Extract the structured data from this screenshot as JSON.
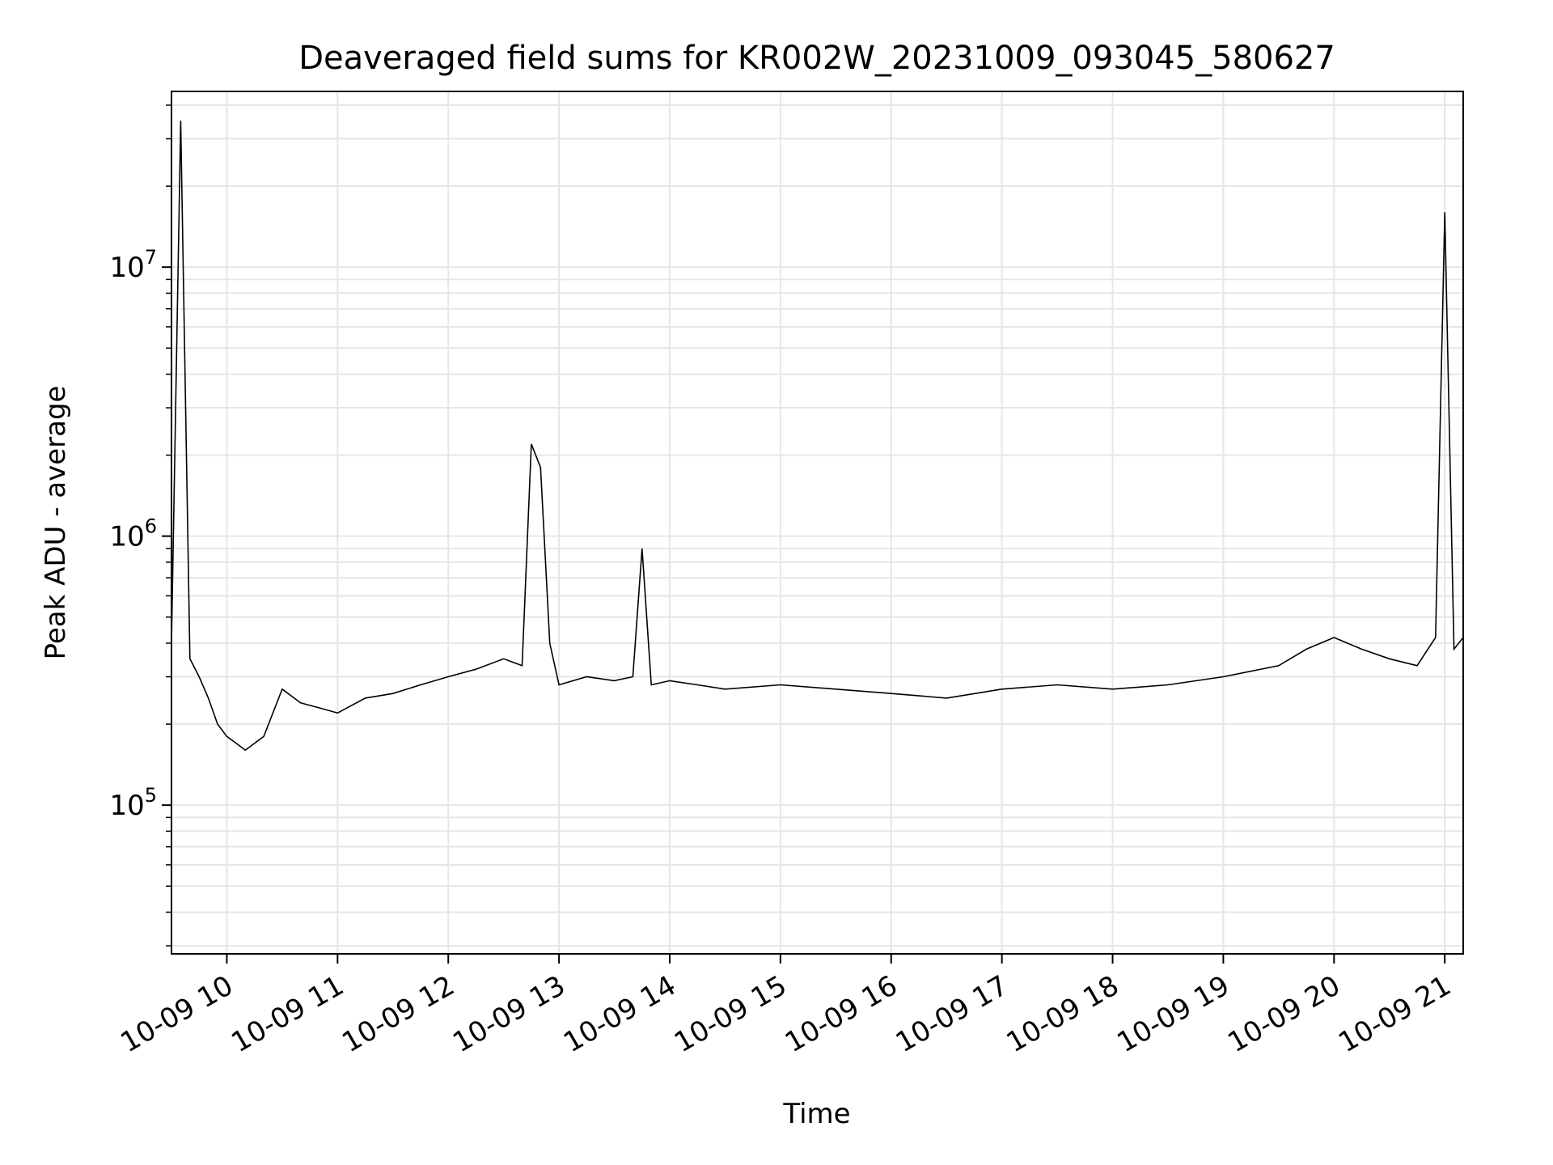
{
  "chart_data": {
    "type": "line",
    "title": "Deaveraged field sums for KR002W_20231009_093045_580627",
    "xlabel": "Time",
    "ylabel": "Peak ADU - average",
    "yscale": "log",
    "grid": true,
    "x_range": [
      "2023-10-09 09:30",
      "2023-10-09 21:10"
    ],
    "ylim": [
      28000,
      45000000
    ],
    "x_ticks": [
      "10-09 10",
      "10-09 11",
      "10-09 12",
      "10-09 13",
      "10-09 14",
      "10-09 15",
      "10-09 16",
      "10-09 17",
      "10-09 18",
      "10-09 19",
      "10-09 20",
      "10-09 21"
    ],
    "y_ticks": [
      {
        "value": 100000,
        "label_base": "10",
        "label_exp": "5"
      },
      {
        "value": 1000000,
        "label_base": "10",
        "label_exp": "6"
      },
      {
        "value": 10000000,
        "label_base": "10",
        "label_exp": "7"
      }
    ],
    "line_color": "#000000",
    "series": [
      {
        "x": [
          "2023-10-09 09:30",
          "2023-10-09 09:35",
          "2023-10-09 09:40",
          "2023-10-09 09:45",
          "2023-10-09 09:50",
          "2023-10-09 09:55",
          "2023-10-09 10:00",
          "2023-10-09 10:05",
          "2023-10-09 10:10",
          "2023-10-09 10:20",
          "2023-10-09 10:30",
          "2023-10-09 10:40",
          "2023-10-09 10:50",
          "2023-10-09 11:00",
          "2023-10-09 11:15",
          "2023-10-09 11:30",
          "2023-10-09 11:45",
          "2023-10-09 12:00",
          "2023-10-09 12:15",
          "2023-10-09 12:30",
          "2023-10-09 12:40",
          "2023-10-09 12:45",
          "2023-10-09 12:50",
          "2023-10-09 12:55",
          "2023-10-09 13:00",
          "2023-10-09 13:15",
          "2023-10-09 13:30",
          "2023-10-09 13:40",
          "2023-10-09 13:45",
          "2023-10-09 13:50",
          "2023-10-09 14:00",
          "2023-10-09 14:15",
          "2023-10-09 14:30",
          "2023-10-09 15:00",
          "2023-10-09 15:30",
          "2023-10-09 16:00",
          "2023-10-09 16:30",
          "2023-10-09 17:00",
          "2023-10-09 17:30",
          "2023-10-09 18:00",
          "2023-10-09 18:30",
          "2023-10-09 19:00",
          "2023-10-09 19:30",
          "2023-10-09 19:45",
          "2023-10-09 20:00",
          "2023-10-09 20:15",
          "2023-10-09 20:30",
          "2023-10-09 20:45",
          "2023-10-09 20:55",
          "2023-10-09 21:00",
          "2023-10-09 21:05",
          "2023-10-09 21:10"
        ],
        "y": [
          400000,
          35000000,
          350000,
          300000,
          250000,
          200000,
          180000,
          170000,
          160000,
          180000,
          270000,
          240000,
          230000,
          220000,
          250000,
          260000,
          280000,
          300000,
          320000,
          350000,
          330000,
          2200000,
          1800000,
          400000,
          280000,
          300000,
          290000,
          300000,
          900000,
          280000,
          290000,
          280000,
          270000,
          280000,
          270000,
          260000,
          250000,
          270000,
          280000,
          270000,
          280000,
          300000,
          330000,
          380000,
          420000,
          380000,
          350000,
          330000,
          420000,
          16000000,
          380000,
          420000
        ]
      }
    ]
  }
}
